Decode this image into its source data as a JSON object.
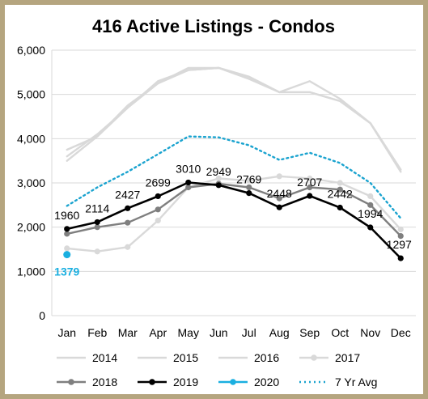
{
  "chart_data": {
    "type": "line",
    "title": "416 Active Listings - Condos",
    "categories": [
      "Jan",
      "Feb",
      "Mar",
      "Apr",
      "May",
      "Jun",
      "Jul",
      "Aug",
      "Sep",
      "Oct",
      "Nov",
      "Dec"
    ],
    "ylim": [
      0,
      6000
    ],
    "yticks": [
      "0",
      "1,000",
      "2,000",
      "3,000",
      "4,000",
      "5,000",
      "6,000"
    ],
    "ytick_values": [
      0,
      1000,
      2000,
      3000,
      4000,
      5000,
      6000
    ],
    "grid": "horizontal",
    "legend_position": "bottom",
    "series": [
      {
        "name": "2014",
        "color": "#d9d9d9",
        "style": "solid",
        "marker": false,
        "values": [
          3500,
          4050,
          4700,
          5250,
          5600,
          5600,
          5350,
          5050,
          5300,
          4900,
          4350,
          3250
        ]
      },
      {
        "name": "2015",
        "color": "#d9d9d9",
        "style": "solid",
        "marker": false,
        "values": [
          3600,
          4100,
          4700,
          5300,
          5550,
          5600,
          5400,
          5050,
          5050,
          4850,
          4350,
          3300
        ]
      },
      {
        "name": "2016",
        "color": "#d9d9d9",
        "style": "solid",
        "marker": false,
        "values": [
          3750,
          4050,
          4750,
          5250,
          5550,
          5600,
          5400,
          5050,
          5050,
          4850,
          4350,
          3300
        ]
      },
      {
        "name": "2017",
        "color": "#d9d9d9",
        "style": "solid",
        "marker": true,
        "values": [
          1520,
          1450,
          1550,
          2150,
          2900,
          3100,
          3050,
          3150,
          3100,
          3000,
          2700,
          1950
        ]
      },
      {
        "name": "2018",
        "color": "#7f7f7f",
        "style": "solid",
        "marker": true,
        "values": [
          1850,
          2000,
          2100,
          2400,
          2900,
          2980,
          2900,
          2650,
          2900,
          2850,
          2500,
          1800
        ]
      },
      {
        "name": "2019",
        "color": "#000000",
        "style": "solid",
        "marker": true,
        "values": [
          1960,
          2114,
          2427,
          2699,
          3010,
          2949,
          2769,
          2448,
          2707,
          2442,
          1994,
          1297
        ],
        "labels": [
          "1960",
          "2114",
          "2427",
          "2699",
          "3010",
          "2949",
          "2769",
          "2448",
          "2707",
          "2442",
          "1994",
          "1297"
        ]
      },
      {
        "name": "2020",
        "color": "#1aafe0",
        "style": "solid",
        "marker": true,
        "values": [
          1379,
          null,
          null,
          null,
          null,
          null,
          null,
          null,
          null,
          null,
          null,
          null
        ],
        "labels": [
          "1379"
        ]
      },
      {
        "name": "7 Yr Avg",
        "color": "#1aa3cf",
        "style": "dotted",
        "marker": false,
        "values": [
          2480,
          2900,
          3250,
          3650,
          4050,
          4030,
          3850,
          3520,
          3680,
          3450,
          3000,
          2200
        ]
      }
    ]
  }
}
